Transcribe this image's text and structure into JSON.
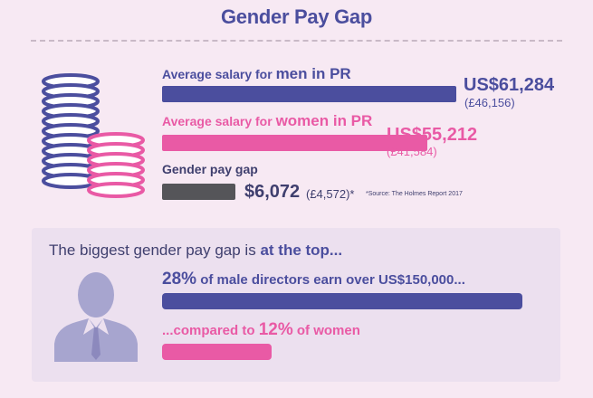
{
  "title": "Gender Pay Gap",
  "colors": {
    "men": "#4b4e9e",
    "women": "#e95aa5",
    "gap": "#555559",
    "text": "#3f3f6e"
  },
  "salary": {
    "men_label_a": "Average salary for ",
    "men_label_b": "men in PR",
    "men_usd": "US$61,284",
    "men_gbp": "(£46,156)",
    "women_label_a": "Average salary for ",
    "women_label_b": "women in PR",
    "women_usd": "US$55,212",
    "women_gbp": "(£41,584)",
    "gap_label": "Gender pay gap",
    "gap_usd": "$6,072",
    "gap_gbp": "(£4,572)*",
    "source": "*Source: The Holmes Report 2017"
  },
  "top": {
    "heading_a": "The biggest gender pay gap is ",
    "heading_b": "at the top...",
    "men_pct": "28%",
    "men_text_a": " of ",
    "men_text_b": "male",
    "men_text_c": " directors earn over US$150,000...",
    "women_text_a": "...compared to ",
    "women_pct": "12%",
    "women_text_b": " of women"
  },
  "chart_data": [
    {
      "type": "bar",
      "categories": [
        "men in PR",
        "women in PR",
        "Gender pay gap"
      ],
      "values": [
        61284,
        55212,
        6072
      ],
      "values_gbp": [
        46156,
        41584,
        4572
      ],
      "unit": "US$"
    },
    {
      "type": "bar",
      "categories": [
        "male directors",
        "women"
      ],
      "values": [
        28,
        12
      ],
      "unit": "%"
    }
  ]
}
